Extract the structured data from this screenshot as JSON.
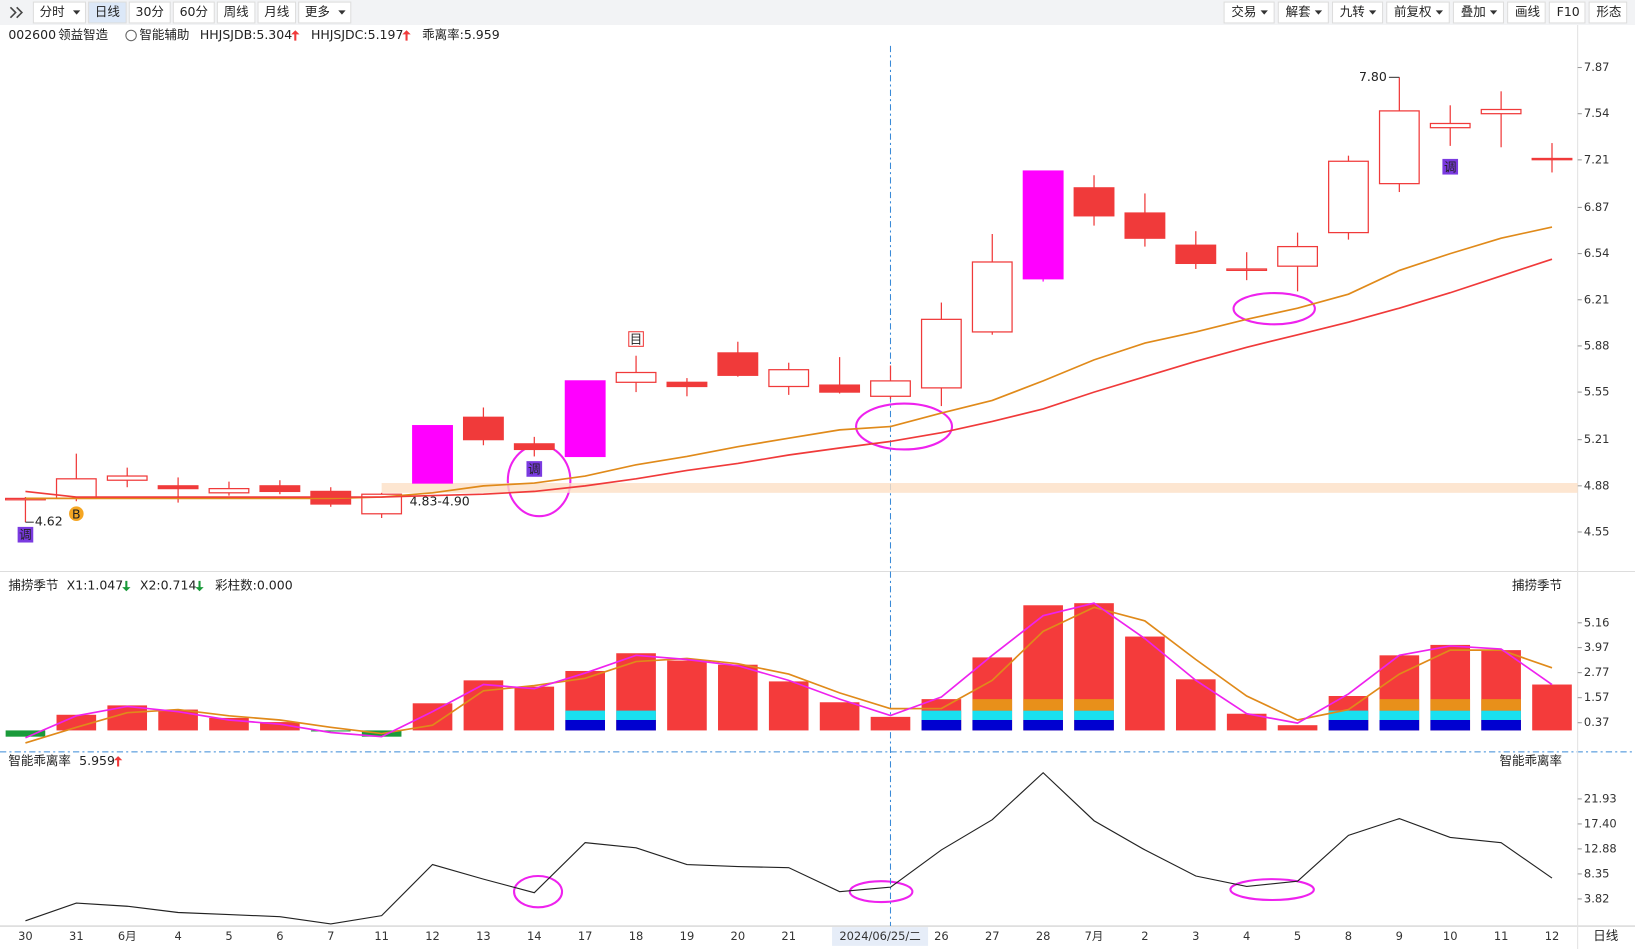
{
  "toolbar": {
    "left": [
      "分时",
      "日线",
      "30分",
      "60分",
      "周线",
      "月线",
      "更多"
    ],
    "right": [
      "交易",
      "解套",
      "九转",
      "前复权",
      "叠加",
      "画线",
      "F10",
      "形态"
    ],
    "active": 1
  },
  "header": {
    "code": "002600",
    "name": "领益智造",
    "assist": "智能辅助"
  },
  "cursor": 17,
  "period": "日线",
  "chart_data": [
    {
      "type": "candlestick",
      "categories": [
        "30",
        "31",
        "6月",
        "4",
        "5",
        "6",
        "7",
        "11",
        "12",
        "13",
        "14",
        "17",
        "18",
        "19",
        "20",
        "21",
        null,
        "2024/06/25/二",
        "26",
        "27",
        "28",
        "7月",
        "2",
        "3",
        "4",
        "5",
        "8",
        "9",
        "10",
        "11",
        "12"
      ],
      "open": [
        4.78,
        4.79,
        4.92,
        4.88,
        4.83,
        4.88,
        4.84,
        4.68,
        4.9,
        5.37,
        5.18,
        5.09,
        5.62,
        5.62,
        5.83,
        5.59,
        5.6,
        5.52,
        5.58,
        5.98,
        6.36,
        7.01,
        6.83,
        6.6,
        6.42,
        6.45,
        6.69,
        7.04,
        7.44,
        7.54,
        7.22
      ],
      "high": [
        4.8,
        5.11,
        5.01,
        4.94,
        4.91,
        4.92,
        4.87,
        4.83,
        5.31,
        5.44,
        5.23,
        5.63,
        5.81,
        5.65,
        5.91,
        5.76,
        5.8,
        5.74,
        6.19,
        6.68,
        7.13,
        7.1,
        6.97,
        6.7,
        6.55,
        6.69,
        7.24,
        7.8,
        7.6,
        7.7,
        7.33
      ],
      "low": [
        4.62,
        4.77,
        4.87,
        4.76,
        4.81,
        4.82,
        4.73,
        4.65,
        4.9,
        5.17,
        5.09,
        5.09,
        5.55,
        5.52,
        5.66,
        5.53,
        5.54,
        5.5,
        5.45,
        5.96,
        6.34,
        6.74,
        6.59,
        6.43,
        6.35,
        6.27,
        6.64,
        6.98,
        7.31,
        7.3,
        7.12
      ],
      "close": [
        4.79,
        4.93,
        4.95,
        4.86,
        4.86,
        4.84,
        4.75,
        4.82,
        5.31,
        5.21,
        5.14,
        5.63,
        5.69,
        5.59,
        5.67,
        5.71,
        5.55,
        5.63,
        6.07,
        6.48,
        7.13,
        6.81,
        6.65,
        6.47,
        6.43,
        6.59,
        7.2,
        7.56,
        7.47,
        7.57,
        7.22
      ],
      "colors": [
        "#f03a3a",
        "#f03a3a",
        "#f03a3a",
        "#f03a3a",
        "#f03a3a",
        "#f03a3a",
        "#f03a3a",
        "#f03a3a",
        "#ff00ff",
        "#f03a3a",
        "#f03a3a",
        "#ff00ff",
        "#f03a3a",
        "#f03a3a",
        "#f03a3a",
        "#f03a3a",
        "#f03a3a",
        "#f03a3a",
        "#f03a3a",
        "#f03a3a",
        "#ff00ff",
        "#f03a3a",
        "#f03a3a",
        "#f03a3a",
        "#f03a3a",
        "#f03a3a",
        "#f03a3a",
        "#f03a3a",
        "#f03a3a",
        "#f03a3a",
        "#f03a3a"
      ],
      "up_color": "#f03a3a",
      "series": [
        {
          "name": "HHJSJDB:5.304",
          "color": "#e08a1a",
          "trend": "up",
          "values": [
            4.79,
            4.79,
            4.79,
            4.79,
            4.79,
            4.79,
            4.79,
            4.8,
            4.83,
            4.88,
            4.9,
            4.95,
            5.03,
            5.09,
            5.16,
            5.22,
            5.28,
            5.304,
            5.4,
            5.49,
            5.63,
            5.78,
            5.9,
            5.98,
            6.07,
            6.15,
            6.25,
            6.42,
            6.54,
            6.65,
            6.73
          ]
        },
        {
          "name": "HHJSJDC:5.197",
          "color": "#f03a3a",
          "trend": "up",
          "values": [
            4.84,
            4.8,
            4.8,
            4.8,
            4.8,
            4.8,
            4.8,
            4.8,
            4.81,
            4.82,
            4.84,
            4.88,
            4.93,
            4.99,
            5.04,
            5.1,
            5.15,
            5.197,
            5.26,
            5.34,
            5.43,
            5.55,
            5.66,
            5.77,
            5.87,
            5.96,
            6.05,
            6.15,
            6.26,
            6.38,
            6.5
          ]
        }
      ],
      "note": "乖离率:5.959",
      "note_color": "#e08a1a",
      "band": {
        "low": 4.83,
        "high": 4.9,
        "label": "4.83-4.90",
        "from": 7
      },
      "annotations": [
        {
          "text": "7.80",
          "index": 27,
          "value": 7.8
        },
        {
          "text": "4.62",
          "index": 0,
          "value": 4.62
        }
      ],
      "icons": [
        {
          "label": "调",
          "index": 0
        },
        {
          "label": "B",
          "index": 1
        },
        {
          "label": "调",
          "index": 10
        },
        {
          "label": "目",
          "index": 12
        },
        {
          "label": "调",
          "index": 28
        }
      ],
      "ylim": [
        4.29,
        7.98
      ],
      "yticks": [
        4.55,
        4.88,
        5.21,
        5.55,
        5.88,
        6.21,
        6.54,
        6.87,
        7.21,
        7.54,
        7.87
      ],
      "grid": false
    },
    {
      "type": "bar",
      "title": "捕捞季节",
      "values": [
        -0.3,
        0.75,
        1.2,
        1.0,
        0.6,
        0.4,
        -0.05,
        -0.3,
        1.3,
        2.4,
        2.1,
        2.85,
        3.7,
        3.35,
        3.15,
        2.35,
        1.35,
        0.65,
        1.5,
        3.5,
        6.0,
        6.1,
        4.5,
        2.45,
        0.8,
        0.25,
        1.65,
        3.6,
        4.1,
        3.85,
        2.2
      ],
      "pos_color": "#f43b3b",
      "neg_color": "#1a9a3a",
      "stacks": [
        {
          "color": "#0000d0",
          "values": [
            null,
            null,
            null,
            null,
            null,
            null,
            null,
            null,
            null,
            null,
            null,
            0.5,
            0.5,
            null,
            null,
            null,
            null,
            null,
            0.5,
            0.5,
            0.5,
            0.5,
            null,
            null,
            null,
            null,
            0.5,
            0.5,
            0.5,
            0.5,
            null
          ]
        },
        {
          "color": "#19e0f0",
          "values": [
            null,
            null,
            null,
            null,
            null,
            null,
            null,
            null,
            null,
            null,
            null,
            0.45,
            0.45,
            null,
            null,
            null,
            null,
            null,
            0.45,
            0.45,
            0.45,
            0.45,
            null,
            null,
            null,
            null,
            0.45,
            0.45,
            0.45,
            0.45,
            null
          ]
        },
        {
          "color": "#e8901a",
          "values": [
            null,
            null,
            null,
            null,
            null,
            null,
            null,
            null,
            null,
            null,
            null,
            null,
            null,
            null,
            null,
            null,
            null,
            null,
            null,
            0.55,
            0.55,
            0.55,
            null,
            null,
            null,
            null,
            null,
            0.55,
            0.55,
            0.55,
            null
          ]
        }
      ],
      "series": [
        {
          "name": "X1:1.047",
          "color": "#e08a1a",
          "trend": "down",
          "values": [
            -0.6,
            0.15,
            0.85,
            1.0,
            0.7,
            0.5,
            0.15,
            -0.15,
            0.25,
            1.9,
            2.15,
            2.5,
            3.3,
            3.45,
            3.2,
            2.7,
            1.8,
            1.047,
            1.05,
            2.4,
            4.75,
            5.9,
            5.25,
            3.4,
            1.65,
            0.5,
            1.0,
            2.7,
            3.85,
            3.85,
            3.0
          ]
        },
        {
          "name": "X2:0.714",
          "color": "#ee22ee",
          "trend": "down",
          "values": [
            -0.35,
            0.7,
            1.15,
            0.9,
            0.5,
            0.3,
            -0.1,
            -0.3,
            0.9,
            2.2,
            2.0,
            2.75,
            3.6,
            3.4,
            3.1,
            2.4,
            1.5,
            0.714,
            1.6,
            3.6,
            5.5,
            6.1,
            4.4,
            2.4,
            0.8,
            0.35,
            1.75,
            3.6,
            4.05,
            3.9,
            2.2
          ]
        }
      ],
      "note": "彩柱数:0.000",
      "note_color": "#1a9a3a",
      "ylim": [
        -0.88,
        6.42
      ],
      "yticks": [
        0.37,
        1.57,
        2.77,
        3.97,
        5.16
      ]
    },
    {
      "type": "line",
      "title": "智能乖离率",
      "series": [
        {
          "name": "5.959",
          "color": "#222222",
          "trend": "up",
          "values": [
            -0.14,
            3.06,
            2.5,
            1.37,
            0.99,
            0.61,
            -0.71,
            0.8,
            10.05,
            7.41,
            4.95,
            14.02,
            13.07,
            10.05,
            9.67,
            9.48,
            5.14,
            5.959,
            12.69,
            18.17,
            26.66,
            17.98,
            12.69,
            7.97,
            6.09,
            7.03,
            15.34,
            18.36,
            14.96,
            14.02,
            7.6
          ]
        }
      ],
      "ylim": [
        -1.09,
        27.61
      ],
      "yticks": [
        3.82,
        8.35,
        12.88,
        {
          "value": 17.4,
          "label": "17.40"
        },
        21.93
      ]
    }
  ]
}
